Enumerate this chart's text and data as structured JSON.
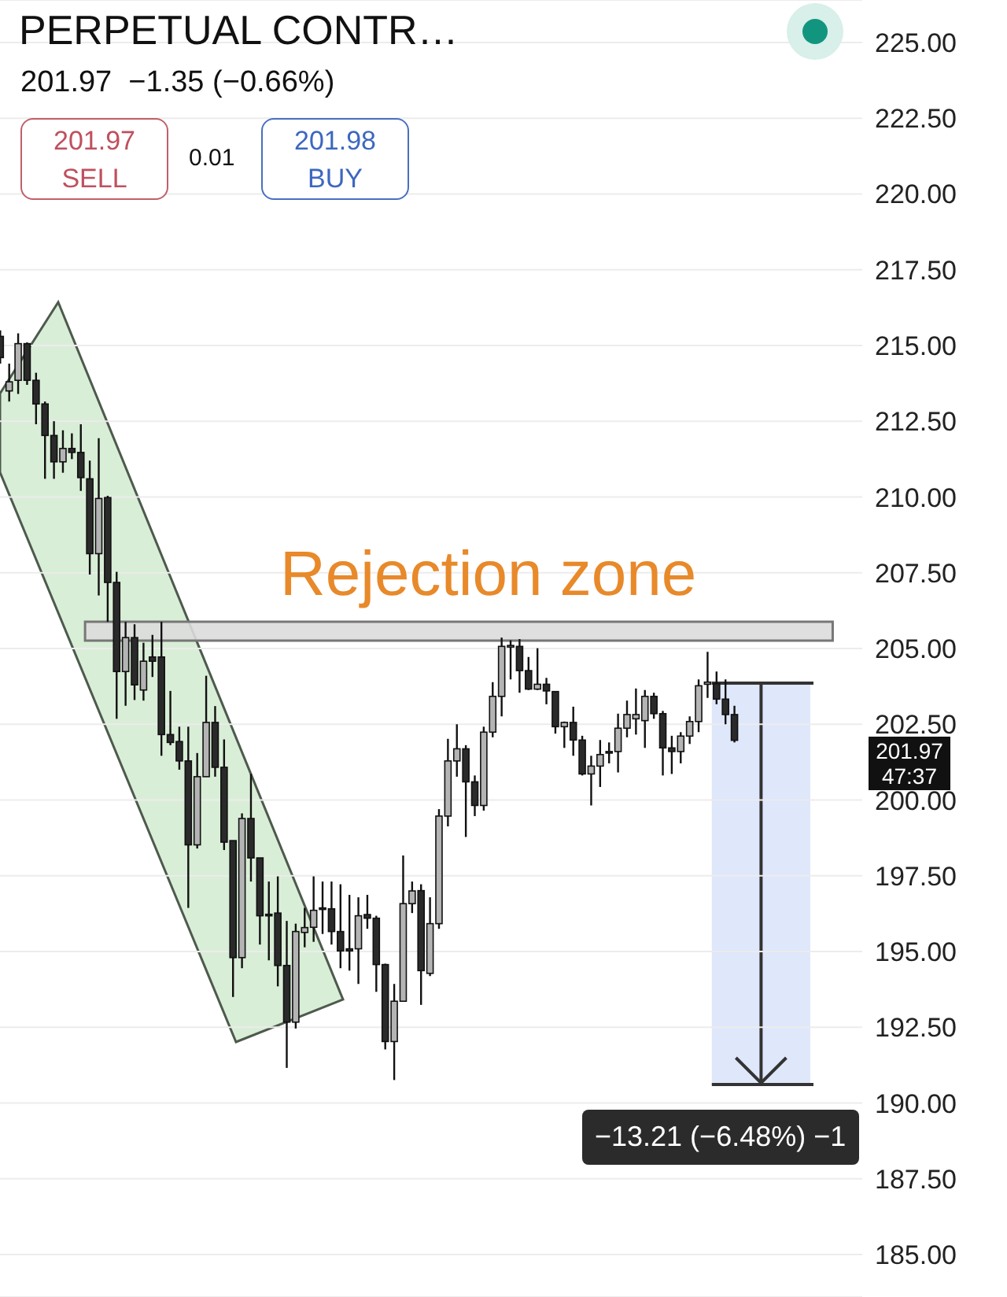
{
  "chart_data": {
    "type": "candlestick",
    "title": "PERPETUAL CONTR…",
    "subtitle": "201.97  −1.35 (−0.66%)",
    "annotations": [
      "201.97",
      "SELL",
      "0.01",
      "201.98",
      "BUY",
      "201.97",
      "47:37",
      "−13.21 (−6.48%) −1"
    ],
    "categories": [
      null,
      null,
      null,
      null,
      null,
      null,
      null,
      null,
      null,
      null,
      null,
      null,
      null,
      null,
      null,
      null,
      null,
      null,
      null,
      null,
      null,
      null,
      null,
      null,
      null,
      null,
      null,
      null,
      null,
      null,
      null,
      null,
      null,
      null,
      null,
      null,
      null,
      null,
      null,
      null,
      null,
      null,
      null,
      null,
      null,
      null,
      null,
      null,
      null,
      null,
      null,
      null,
      null,
      null,
      null,
      null,
      null,
      null,
      null,
      null,
      null,
      null,
      null,
      null,
      null,
      null,
      null,
      null,
      null,
      null,
      null,
      null,
      null,
      null,
      null,
      null,
      null,
      null,
      null,
      null,
      null,
      null,
      null
    ],
    "ohlc": [
      [
        215.3,
        215.5,
        214.4,
        214.6
      ],
      [
        213.5,
        214.4,
        213.15,
        213.8
      ],
      [
        213.85,
        215.4,
        213.4,
        215.06
      ],
      [
        215.06,
        215.1,
        213.7,
        213.85
      ],
      [
        213.85,
        214.1,
        212.4,
        213.07
      ],
      [
        213.07,
        213.15,
        210.6,
        212.03
      ],
      [
        212.03,
        212.5,
        210.6,
        211.16
      ],
      [
        211.16,
        212.2,
        210.8,
        211.6
      ],
      [
        211.6,
        212.1,
        211.25,
        211.47
      ],
      [
        211.47,
        212.4,
        210.2,
        210.64
      ],
      [
        210.6,
        211.2,
        207.44,
        208.13
      ],
      [
        208.13,
        211.94,
        206.75,
        209.95
      ],
      [
        209.98,
        210.04,
        205.88,
        207.18
      ],
      [
        207.18,
        207.53,
        202.68,
        204.24
      ],
      [
        204.24,
        205.88,
        203.11,
        205.36
      ],
      [
        205.36,
        205.8,
        203.3,
        203.8
      ],
      [
        203.63,
        205.19,
        203.28,
        204.58
      ],
      [
        204.72,
        205.45,
        204.06,
        204.58
      ],
      [
        204.72,
        205.88,
        201.46,
        202.16
      ],
      [
        202.16,
        203.6,
        201.81,
        201.9
      ],
      [
        201.93,
        202.42,
        201.0,
        201.29
      ],
      [
        201.29,
        202.42,
        196.44,
        198.52
      ],
      [
        198.52,
        201.55,
        198.4,
        200.77
      ],
      [
        200.77,
        204.1,
        200.77,
        202.56
      ],
      [
        202.56,
        203.1,
        200.77,
        201.08
      ],
      [
        201.08,
        202.0,
        198.35,
        198.61
      ],
      [
        198.66,
        198.66,
        193.5,
        194.8
      ],
      [
        194.8,
        199.56,
        194.45,
        199.39
      ],
      [
        199.39,
        200.86,
        197.31,
        198.09
      ],
      [
        198.09,
        198.09,
        195.23,
        196.18
      ],
      [
        196.23,
        197.31,
        194.71,
        196.18
      ],
      [
        196.27,
        197.48,
        193.85,
        194.54
      ],
      [
        194.54,
        196.01,
        191.16,
        192.67
      ],
      [
        192.67,
        195.92,
        192.46,
        195.66
      ],
      [
        195.63,
        196.44,
        195.14,
        195.79
      ],
      [
        195.8,
        197.48,
        195.32,
        196.36
      ],
      [
        196.44,
        197.31,
        195.58,
        196.39
      ],
      [
        196.41,
        197.31,
        195.23,
        195.66
      ],
      [
        195.66,
        197.22,
        194.45,
        195.02
      ],
      [
        195.09,
        196.87,
        194.37,
        195.02
      ],
      [
        195.09,
        196.79,
        193.93,
        196.18
      ],
      [
        196.22,
        196.87,
        195.75,
        196.1
      ],
      [
        196.1,
        196.18,
        193.67,
        194.57
      ],
      [
        194.57,
        194.6,
        191.77,
        192.03
      ],
      [
        192.03,
        193.93,
        190.76,
        193.36
      ],
      [
        193.36,
        198.17,
        193.36,
        196.58
      ],
      [
        196.58,
        197.31,
        196.27,
        197.0
      ],
      [
        197.01,
        197.22,
        193.24,
        194.37
      ],
      [
        194.28,
        196.79,
        194.19,
        195.92
      ],
      [
        195.92,
        199.7,
        195.75,
        199.47
      ],
      [
        199.47,
        202.02,
        199.13,
        201.29
      ],
      [
        201.29,
        202.5,
        200.77,
        201.69
      ],
      [
        201.69,
        201.81,
        198.78,
        200.6
      ],
      [
        200.6,
        200.81,
        199.47,
        199.82
      ],
      [
        199.82,
        202.42,
        199.65,
        202.24
      ],
      [
        202.24,
        203.89,
        202.07,
        203.42
      ],
      [
        203.42,
        205.36,
        202.76,
        205.07
      ],
      [
        205.05,
        205.27,
        203.98,
        205.1
      ],
      [
        205.07,
        205.31,
        203.54,
        204.27
      ],
      [
        204.27,
        204.72,
        203.63,
        203.66
      ],
      [
        203.66,
        205.01,
        203.63,
        203.82
      ],
      [
        203.82,
        204.03,
        203.16,
        203.6
      ],
      [
        203.58,
        203.58,
        202.19,
        202.42
      ],
      [
        202.42,
        202.59,
        201.72,
        202.56
      ],
      [
        202.56,
        203.08,
        201.46,
        201.98
      ],
      [
        201.98,
        202.12,
        200.81,
        200.86
      ],
      [
        200.86,
        201.46,
        199.82,
        201.12
      ],
      [
        201.12,
        201.98,
        200.43,
        201.5
      ],
      [
        201.6,
        201.9,
        201.21,
        201.55
      ],
      [
        201.6,
        202.85,
        200.91,
        202.37
      ],
      [
        202.37,
        203.28,
        202.07,
        202.82
      ],
      [
        202.68,
        203.68,
        202.16,
        202.82
      ],
      [
        202.62,
        203.63,
        201.72,
        203.42
      ],
      [
        203.42,
        203.54,
        202.68,
        202.85
      ],
      [
        202.85,
        202.94,
        200.81,
        201.72
      ],
      [
        201.72,
        202.12,
        200.86,
        201.6
      ],
      [
        201.6,
        202.24,
        201.21,
        202.11
      ],
      [
        202.11,
        202.76,
        201.85,
        202.59
      ],
      [
        202.59,
        203.98,
        202.24,
        203.77
      ],
      [
        203.82,
        204.89,
        203.37,
        203.89
      ],
      [
        203.84,
        204.24,
        203.16,
        203.33
      ],
      [
        203.33,
        203.98,
        202.5,
        202.82
      ],
      [
        202.82,
        203.11,
        201.9,
        201.97
      ]
    ],
    "ylim": [
      183.6,
      226.4
    ],
    "yticks": [
      {
        "value": 185,
        "label": "185.00"
      },
      {
        "value": 187.5,
        "label": "187.50"
      },
      {
        "value": 190,
        "label": "190.00"
      },
      {
        "value": 192.5,
        "label": "192.50"
      },
      {
        "value": 195,
        "label": "195.00"
      },
      {
        "value": 197.5,
        "label": "197.50"
      },
      {
        "value": 200,
        "label": "200.00"
      },
      {
        "value": 202.5,
        "label": "202.50"
      },
      {
        "value": 205,
        "label": "205.00"
      },
      {
        "value": 207.5,
        "label": "207.50"
      },
      {
        "value": 210,
        "label": "210.00"
      },
      {
        "value": 212.5,
        "label": "212.50"
      },
      {
        "value": 215,
        "label": "215.00"
      },
      {
        "value": 217.5,
        "label": "217.50"
      },
      {
        "value": 220,
        "label": "220.00"
      },
      {
        "value": 222.5,
        "label": "222.50"
      },
      {
        "value": 225,
        "label": "225.00"
      }
    ],
    "bands": [
      {
        "axis": "y",
        "from": 205.26,
        "to": 205.88,
        "label": "Rejection zone",
        "color": "#dcdcdc"
      }
    ],
    "grid": "y",
    "tick_labels": "y"
  }
}
